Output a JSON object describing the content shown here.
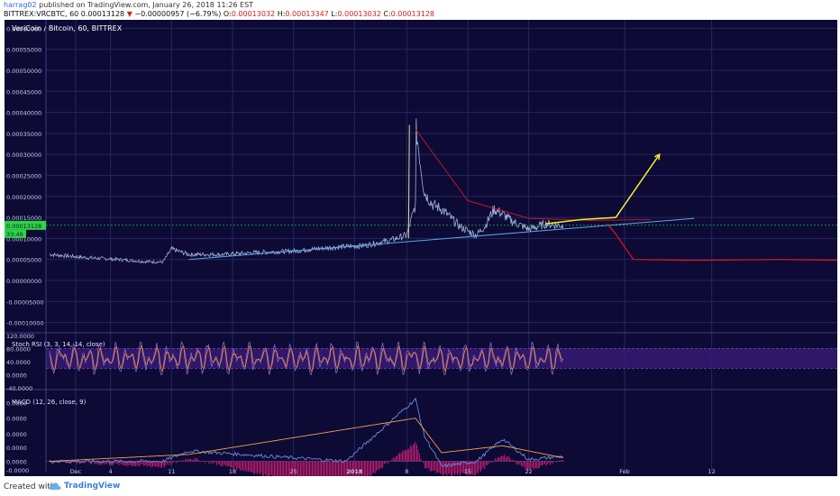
{
  "header": {
    "user": "harrag02",
    "published_text": " published on TradingView.com, January 26, 2018 11:26 EST",
    "symbol": "BITTREX:VRCBTC, 60",
    "last": "0.00013128",
    "arrow": "▼",
    "change": "−0.00000957 (−6.79%)",
    "o_label": "O:",
    "o_value": "0.00013032",
    "h_label": "H:",
    "h_value": "0.00013347",
    "l_label": "L:",
    "l_value": "0.00013032",
    "c_label": "C:",
    "c_value": "0.00013128"
  },
  "chart_title": "VeriCoin / Bitcoin, 60, BITTREX",
  "colors": {
    "background": "#0d0a35",
    "grid": "#242760",
    "price": "#9fb2d8",
    "trendline": "#5aa6e8",
    "resistance": "#c0182a",
    "bull_path": "#f4f02a",
    "bear_path": "#e01818",
    "last_price_tag": "#2fd24a",
    "rsi_k": "#7f6bd8",
    "rsi_d": "#f0902a",
    "rsi_band": "#3a1a78",
    "macd": "#6a8ad8",
    "signal": "#f0a040",
    "histogram": "#e0207a"
  },
  "chart_data": [
    {
      "type": "line",
      "title": "VeriCoin / Bitcoin, 60, BITTREX",
      "ylim": [
        -0.00012,
        0.00062
      ],
      "y_ticks": [
        "0.00060000",
        "0.00055000",
        "0.00050000",
        "0.00045000",
        "0.00040000",
        "0.00035000",
        "0.00030000",
        "0.00025000",
        "0.00020000",
        "0.00015000",
        "0.00010000",
        "0.00005000",
        "0.00000000",
        "-0.00005000",
        "-0.00010000"
      ],
      "x_ticks": [
        "Dec",
        "4",
        "11",
        "18",
        "25",
        "2018",
        "8",
        "15",
        "22",
        "Feb",
        "12"
      ],
      "last_price_label": "0.00013128",
      "countdown_label": "33:49",
      "series": [
        {
          "x": [
            "Nov 28",
            "Dec 2",
            "Dec 6",
            "Dec 9",
            "Dec 11",
            "Dec 12",
            "Dec 14",
            "Dec 18",
            "Dec 22",
            "Dec 26",
            "Dec 30",
            "Jan 3",
            "Jan 6",
            "Jan 8",
            "Jan 9",
            "Jan 9",
            "Jan 10",
            "Jan 11",
            "Jan 12",
            "Jan 13",
            "Jan 14",
            "Jan 15",
            "Jan 16",
            "Jan 17",
            "Jan 18",
            "Jan 19",
            "Jan 20",
            "Jan 21",
            "Jan 22",
            "Jan 23",
            "Jan 24",
            "Jan 25",
            "Jan 26"
          ],
          "values": [
            6.2e-05,
            5.5e-05,
            5e-05,
            4.5e-05,
            4.4e-05,
            7.5e-05,
            6.2e-05,
            6.2e-05,
            6.7e-05,
            7e-05,
            7.8e-05,
            8.3e-05,
            9.5e-05,
            0.000108,
            0.00018,
            0.00037,
            0.00021,
            0.00018,
            0.00017,
            0.00015,
            0.00013,
            0.000118,
            0.000108,
            0.00013,
            0.00017,
            0.000158,
            0.000142,
            0.000132,
            0.000122,
            0.000128,
            0.000135,
            0.000132,
            0.000131
          ]
        }
      ],
      "annotations": [
        {
          "type": "trendline",
          "x": [
            "Dec 14",
            "Feb 10"
          ],
          "values": [
            5e-05,
            0.000148
          ]
        },
        {
          "type": "resistance-curve",
          "x": [
            "Jan 9",
            "Jan 15",
            "Jan 22",
            "Jan 29",
            "Feb 5"
          ],
          "values": [
            0.00036,
            0.00019,
            0.000148,
            0.000143,
            0.000145
          ]
        },
        {
          "type": "bullish-projection",
          "x": [
            "Jan 24",
            "Jan 28",
            "Feb 1",
            "Feb 4",
            "Feb 6"
          ],
          "values": [
            0.000135,
            0.000145,
            0.00015,
            0.00024,
            0.0003
          ]
        },
        {
          "type": "bearish-projection",
          "x": [
            "Jan 31",
            "Feb 1",
            "Feb 3",
            "Feb 10",
            "Feb 20",
            "Feb 28"
          ],
          "values": [
            0.000135,
            0.00011,
            5e-05,
            4.8e-05,
            5e-05,
            4.8e-05
          ]
        }
      ]
    },
    {
      "type": "line",
      "title": "Stoch RSI (3, 3, 14, 14, close)",
      "ylim": [
        -40,
        120
      ],
      "y_ticks": [
        "120.0000",
        "80.0000",
        "40.0000",
        "0.0000",
        "-40.0000"
      ],
      "bands": [
        20,
        80
      ],
      "series": [
        {
          "name": "K",
          "description": "oscillating 0–100 across the visible range"
        },
        {
          "name": "D",
          "description": "smoothed K"
        }
      ]
    },
    {
      "type": "line",
      "title": "MACD (12, 26, close, 9)",
      "y_ticks": [
        "0.0000",
        "0.0000",
        "0.0000",
        "0.0000",
        "0.0000",
        "-0.0000"
      ],
      "series": [
        {
          "name": "MACD",
          "x": [
            "Nov 28",
            "Dec 11",
            "Dec 14",
            "Jan 1",
            "Jan 9",
            "Jan 10",
            "Jan 12",
            "Jan 16",
            "Jan 19",
            "Jan 22",
            "Jan 26"
          ],
          "values": [
            0.0,
            0.0,
            1.2e-05,
            0.0,
            7.2e-05,
            3e-05,
            -6e-06,
            0.0,
            2.6e-05,
            2e-06,
            6e-06
          ]
        },
        {
          "name": "Signal",
          "x": [
            "Nov 28",
            "Dec 14",
            "Jan 9",
            "Jan 12",
            "Jan 19",
            "Jan 26"
          ],
          "values": [
            0.0,
            8e-06,
            5e-05,
            1e-05,
            1.8e-05,
            4e-06
          ]
        }
      ]
    }
  ],
  "footer": {
    "created_with": "Created with",
    "brand": "TradingView"
  }
}
